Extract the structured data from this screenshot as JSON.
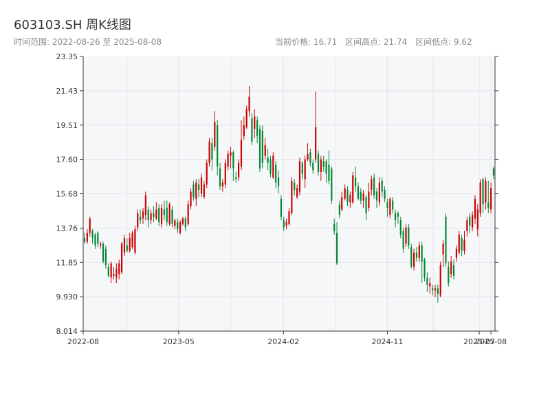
{
  "header": {
    "title": "603103.SH 周K线图",
    "range_text": "时间范围: 2022-08-26 至 2025-08-08",
    "current_price": "当前价格: 16.71",
    "range_high": "区间高点: 21.74",
    "range_low": "区间低点: 9.62"
  },
  "chart_data": {
    "type": "candlestick",
    "title": "603103.SH 周K线图",
    "xlabel": "",
    "ylabel": "",
    "ylim": [
      8.014,
      23.35
    ],
    "y_ticks": [
      "23.35",
      "21.43",
      "19.51",
      "17.60",
      "15.68",
      "13.76",
      "11.85",
      "9.930",
      "8.014"
    ],
    "x_ticks": [
      "2022-08",
      "2023-05",
      "2024-02",
      "2024-11",
      "2025-07",
      "2025-08"
    ],
    "x_range": [
      "2022-08-26",
      "2025-08-08"
    ],
    "grid": true,
    "colors": {
      "up": "#cc0000",
      "down": "#008833",
      "plot_bg": "#f6f7f9",
      "grid": "#e4e6ea",
      "axis": "#333333"
    },
    "candles": [
      [
        "2022-08-26",
        13.2,
        13.0,
        13.5,
        12.9
      ],
      [
        "2022-09-02",
        13.0,
        13.5,
        13.7,
        12.9
      ],
      [
        "2022-09-09",
        13.5,
        14.3,
        14.4,
        13.3
      ],
      [
        "2022-09-16",
        13.6,
        13.2,
        13.7,
        12.9
      ],
      [
        "2022-09-23",
        13.4,
        12.8,
        13.5,
        12.6
      ],
      [
        "2022-09-30",
        13.5,
        12.9,
        13.6,
        12.7
      ],
      [
        "2022-10-07",
        12.8,
        12.9,
        13.0,
        12.6
      ],
      [
        "2022-10-14",
        12.9,
        11.9,
        13.0,
        11.8
      ],
      [
        "2022-10-21",
        12.6,
        11.7,
        12.8,
        11.5
      ],
      [
        "2022-10-28",
        11.6,
        11.1,
        11.8,
        11.0
      ],
      [
        "2022-11-04",
        11.0,
        11.8,
        11.9,
        10.7
      ],
      [
        "2022-11-11",
        11.1,
        11.2,
        11.6,
        10.9
      ],
      [
        "2022-11-18",
        11.0,
        11.5,
        11.8,
        10.7
      ],
      [
        "2022-11-25",
        11.2,
        11.8,
        12.0,
        10.9
      ],
      [
        "2022-12-02",
        11.3,
        12.9,
        13.0,
        11.2
      ],
      [
        "2022-12-09",
        12.4,
        13.2,
        13.4,
        12.2
      ],
      [
        "2022-12-16",
        12.8,
        12.5,
        13.2,
        12.4
      ],
      [
        "2022-12-23",
        12.5,
        13.2,
        13.5,
        12.4
      ],
      [
        "2022-12-30",
        12.7,
        13.5,
        13.6,
        12.6
      ],
      [
        "2023-01-06",
        12.4,
        13.7,
        13.9,
        12.3
      ],
      [
        "2023-01-13",
        13.8,
        14.6,
        14.8,
        13.6
      ],
      [
        "2023-01-20",
        14.4,
        14.2,
        14.8,
        14.0
      ],
      [
        "2023-01-27",
        14.3,
        14.7,
        14.9,
        14.0
      ],
      [
        "2023-02-03",
        14.5,
        15.6,
        15.8,
        14.2
      ],
      [
        "2023-02-10",
        14.8,
        14.2,
        15.0,
        13.8
      ],
      [
        "2023-02-17",
        14.2,
        14.6,
        14.8,
        14.0
      ],
      [
        "2023-02-24",
        14.6,
        14.4,
        15.0,
        14.1
      ],
      [
        "2023-03-03",
        14.3,
        14.8,
        15.2,
        14.2
      ],
      [
        "2023-03-10",
        14.9,
        14.1,
        15.1,
        13.9
      ],
      [
        "2023-03-17",
        14.0,
        14.9,
        15.1,
        13.8
      ],
      [
        "2023-03-24",
        14.8,
        14.5,
        15.3,
        14.2
      ],
      [
        "2023-03-31",
        14.9,
        14.1,
        15.3,
        13.9
      ],
      [
        "2023-04-07",
        14.0,
        15.1,
        15.2,
        13.9
      ],
      [
        "2023-04-14",
        14.8,
        14.0,
        15.0,
        13.8
      ],
      [
        "2023-04-21",
        13.9,
        14.2,
        14.3,
        13.7
      ],
      [
        "2023-04-28",
        14.1,
        13.7,
        14.3,
        13.5
      ],
      [
        "2023-05-05",
        13.5,
        14.1,
        14.2,
        13.4
      ],
      [
        "2023-05-12",
        14.0,
        14.3,
        14.4,
        13.9
      ],
      [
        "2023-05-19",
        14.3,
        13.8,
        14.4,
        13.6
      ],
      [
        "2023-05-26",
        14.0,
        15.1,
        15.3,
        13.9
      ],
      [
        "2023-06-02",
        15.0,
        15.8,
        16.0,
        14.8
      ],
      [
        "2023-06-09",
        16.2,
        15.5,
        16.4,
        15.3
      ],
      [
        "2023-06-16",
        15.4,
        16.3,
        16.5,
        15.0
      ],
      [
        "2023-06-23",
        16.2,
        15.9,
        16.5,
        15.5
      ],
      [
        "2023-06-30",
        15.7,
        16.6,
        16.8,
        15.5
      ],
      [
        "2023-07-07",
        15.5,
        16.2,
        16.4,
        15.4
      ],
      [
        "2023-07-14",
        16.2,
        17.4,
        17.6,
        16.0
      ],
      [
        "2023-07-21",
        17.4,
        18.6,
        18.8,
        17.2
      ],
      [
        "2023-07-28",
        18.5,
        17.6,
        18.8,
        17.0
      ],
      [
        "2023-08-04",
        18.3,
        19.7,
        20.3,
        18.1
      ],
      [
        "2023-08-11",
        19.5,
        17.2,
        19.8,
        16.7
      ],
      [
        "2023-08-18",
        17.1,
        16.1,
        17.4,
        15.9
      ],
      [
        "2023-08-25",
        16.1,
        16.3,
        16.5,
        15.8
      ],
      [
        "2023-09-01",
        16.2,
        17.4,
        17.6,
        16.0
      ],
      [
        "2023-09-08",
        17.2,
        17.9,
        18.1,
        17.0
      ],
      [
        "2023-09-15",
        17.8,
        18.0,
        18.3,
        17.1
      ],
      [
        "2023-09-22",
        18.0,
        17.1,
        18.1,
        16.4
      ],
      [
        "2023-09-29",
        16.6,
        16.5,
        16.9,
        16.3
      ],
      [
        "2023-10-06",
        16.6,
        17.4,
        17.6,
        16.4
      ],
      [
        "2023-10-13",
        17.2,
        18.7,
        19.8,
        17.0
      ],
      [
        "2023-10-20",
        18.9,
        19.5,
        20.0,
        18.7
      ],
      [
        "2023-10-27",
        19.4,
        20.4,
        20.6,
        19.3
      ],
      [
        "2023-11-03",
        20.3,
        21.1,
        21.7,
        20.0
      ],
      [
        "2023-11-10",
        19.9,
        18.6,
        20.2,
        18.4
      ],
      [
        "2023-11-17",
        19.3,
        20.0,
        20.4,
        18.8
      ],
      [
        "2023-11-24",
        19.8,
        18.9,
        20.0,
        18.5
      ],
      [
        "2023-12-01",
        19.3,
        17.1,
        19.5,
        16.9
      ],
      [
        "2023-12-08",
        19.2,
        17.4,
        19.5,
        17.1
      ],
      [
        "2023-12-15",
        17.8,
        18.4,
        18.8,
        17.6
      ],
      [
        "2023-12-22",
        17.7,
        17.4,
        18.2,
        17.0
      ],
      [
        "2023-12-29",
        17.6,
        16.8,
        17.8,
        16.6
      ],
      [
        "2024-01-05",
        16.6,
        17.8,
        18.0,
        16.5
      ],
      [
        "2024-01-12",
        17.3,
        16.3,
        17.5,
        16.0
      ],
      [
        "2024-01-19",
        16.6,
        16.1,
        17.0,
        15.7
      ],
      [
        "2024-01-26",
        15.4,
        14.4,
        15.6,
        14.2
      ],
      [
        "2024-02-02",
        14.2,
        13.8,
        14.4,
        13.6
      ],
      [
        "2024-02-09",
        13.9,
        14.1,
        14.3,
        13.7
      ],
      [
        "2024-02-16",
        14.0,
        14.7,
        14.9,
        13.9
      ],
      [
        "2024-02-23",
        14.6,
        16.4,
        16.6,
        14.5
      ],
      [
        "2024-03-01",
        16.3,
        15.9,
        16.5,
        15.6
      ],
      [
        "2024-03-08",
        15.5,
        16.0,
        16.2,
        15.4
      ],
      [
        "2024-03-15",
        15.8,
        17.5,
        17.7,
        15.6
      ],
      [
        "2024-03-22",
        17.4,
        16.8,
        17.5,
        16.5
      ],
      [
        "2024-03-29",
        16.5,
        17.6,
        17.8,
        16.0
      ],
      [
        "2024-04-05",
        17.6,
        17.9,
        18.5,
        17.5
      ],
      [
        "2024-04-12",
        18.0,
        17.4,
        18.2,
        17.2
      ],
      [
        "2024-04-19",
        17.4,
        17.0,
        17.6,
        16.8
      ],
      [
        "2024-04-26",
        17.6,
        19.4,
        21.4,
        17.4
      ],
      [
        "2024-05-03",
        17.9,
        16.9,
        18.1,
        16.7
      ],
      [
        "2024-05-10",
        16.9,
        17.6,
        17.8,
        16.4
      ],
      [
        "2024-05-17",
        17.5,
        17.2,
        17.8,
        16.9
      ],
      [
        "2024-05-24",
        17.5,
        16.8,
        17.6,
        16.3
      ],
      [
        "2024-05-31",
        17.3,
        16.4,
        18.1,
        16.2
      ],
      [
        "2024-06-07",
        17.1,
        15.3,
        17.2,
        15.1
      ],
      [
        "2024-06-14",
        14.0,
        13.6,
        14.3,
        13.4
      ],
      [
        "2024-06-21",
        13.5,
        11.8,
        14.1,
        11.7
      ],
      [
        "2024-06-28",
        15.1,
        14.5,
        15.3,
        14.3
      ],
      [
        "2024-07-04",
        14.8,
        15.5,
        15.8,
        14.7
      ],
      [
        "2024-07-12",
        15.4,
        16.0,
        16.2,
        15.3
      ],
      [
        "2024-07-19",
        15.9,
        15.2,
        16.1,
        15.0
      ],
      [
        "2024-07-26",
        15.2,
        15.6,
        15.8,
        14.9
      ],
      [
        "2024-08-02",
        15.2,
        16.7,
        16.9,
        15.1
      ],
      [
        "2024-08-09",
        16.6,
        16.1,
        17.2,
        15.8
      ],
      [
        "2024-08-16",
        16.1,
        15.4,
        16.3,
        15.3
      ],
      [
        "2024-08-23",
        15.8,
        15.3,
        16.0,
        15.1
      ],
      [
        "2024-08-30",
        15.3,
        15.7,
        15.9,
        14.9
      ],
      [
        "2024-09-06",
        15.5,
        14.6,
        15.6,
        14.2
      ],
      [
        "2024-09-13",
        14.9,
        15.8,
        16.3,
        14.7
      ],
      [
        "2024-09-20",
        15.9,
        16.5,
        16.7,
        15.6
      ],
      [
        "2024-09-27",
        16.6,
        15.6,
        16.8,
        15.4
      ],
      [
        "2024-10-04",
        15.8,
        15.3,
        16.0,
        14.9
      ],
      [
        "2024-10-11",
        15.2,
        16.3,
        16.6,
        15.0
      ],
      [
        "2024-10-18",
        16.4,
        15.8,
        16.6,
        15.5
      ],
      [
        "2024-10-25",
        15.9,
        15.4,
        16.1,
        15.2
      ],
      [
        "2024-11-01",
        15.2,
        14.9,
        15.4,
        14.4
      ],
      [
        "2024-11-08",
        14.5,
        15.4,
        15.5,
        14.3
      ],
      [
        "2024-11-15",
        15.3,
        14.8,
        15.5,
        14.6
      ],
      [
        "2024-11-22",
        14.6,
        14.2,
        14.8,
        13.8
      ],
      [
        "2024-11-29",
        14.6,
        14.4,
        14.7,
        14.0
      ],
      [
        "2024-12-06",
        14.2,
        13.4,
        14.4,
        13.2
      ],
      [
        "2024-12-13",
        13.6,
        12.6,
        13.8,
        12.4
      ],
      [
        "2024-12-20",
        12.9,
        13.8,
        14.0,
        12.7
      ],
      [
        "2024-12-27",
        13.8,
        12.8,
        14.0,
        12.6
      ],
      [
        "2025-01-03",
        12.7,
        11.6,
        12.9,
        11.5
      ],
      [
        "2025-01-10",
        11.6,
        12.4,
        12.6,
        11.4
      ],
      [
        "2025-01-17",
        12.4,
        12.1,
        12.7,
        11.9
      ],
      [
        "2025-01-24",
        12.1,
        12.8,
        13.0,
        11.9
      ],
      [
        "2025-01-31",
        12.8,
        11.9,
        13.0,
        10.7
      ],
      [
        "2025-02-07",
        12.0,
        11.0,
        12.1,
        10.8
      ],
      [
        "2025-02-14",
        11.0,
        10.6,
        11.3,
        10.2
      ],
      [
        "2025-02-21",
        10.5,
        10.7,
        11.0,
        10.1
      ],
      [
        "2025-02-28",
        10.4,
        10.3,
        10.6,
        10.0
      ],
      [
        "2025-03-07",
        10.3,
        10.4,
        10.6,
        9.9
      ],
      [
        "2025-03-14",
        10.4,
        10.1,
        10.6,
        9.6
      ],
      [
        "2025-03-21",
        10.0,
        11.7,
        11.9,
        9.9
      ],
      [
        "2025-03-28",
        12.3,
        12.9,
        13.1,
        11.6
      ],
      [
        "2025-04-04",
        14.4,
        11.8,
        14.6,
        11.6
      ],
      [
        "2025-04-11",
        11.6,
        10.7,
        11.9,
        10.5
      ],
      [
        "2025-04-18",
        11.2,
        11.9,
        12.2,
        11.0
      ],
      [
        "2025-04-25",
        11.7,
        11.1,
        12.0,
        10.9
      ],
      [
        "2025-05-02",
        12.1,
        12.6,
        12.8,
        11.9
      ],
      [
        "2025-05-09",
        12.4,
        13.4,
        13.6,
        12.3
      ],
      [
        "2025-05-16",
        13.2,
        12.5,
        13.4,
        12.2
      ],
      [
        "2025-05-23",
        12.5,
        13.1,
        13.6,
        12.3
      ],
      [
        "2025-05-30",
        13.6,
        14.2,
        14.4,
        13.3
      ],
      [
        "2025-06-06",
        14.4,
        13.9,
        14.6,
        13.5
      ],
      [
        "2025-06-13",
        13.8,
        14.5,
        14.7,
        13.6
      ],
      [
        "2025-06-20",
        14.3,
        15.4,
        15.6,
        14.0
      ],
      [
        "2025-06-27",
        13.7,
        14.8,
        15.1,
        13.3
      ],
      [
        "2025-07-04",
        14.6,
        16.3,
        16.5,
        14.4
      ],
      [
        "2025-07-11",
        16.5,
        15.1,
        16.6,
        14.6
      ],
      [
        "2025-07-18",
        15.2,
        16.4,
        16.6,
        14.8
      ],
      [
        "2025-07-25",
        15.2,
        14.9,
        16.4,
        14.6
      ],
      [
        "2025-08-01",
        14.8,
        16.0,
        16.3,
        14.6
      ],
      [
        "2025-08-08",
        17.1,
        16.7,
        17.2,
        16.5
      ]
    ]
  }
}
